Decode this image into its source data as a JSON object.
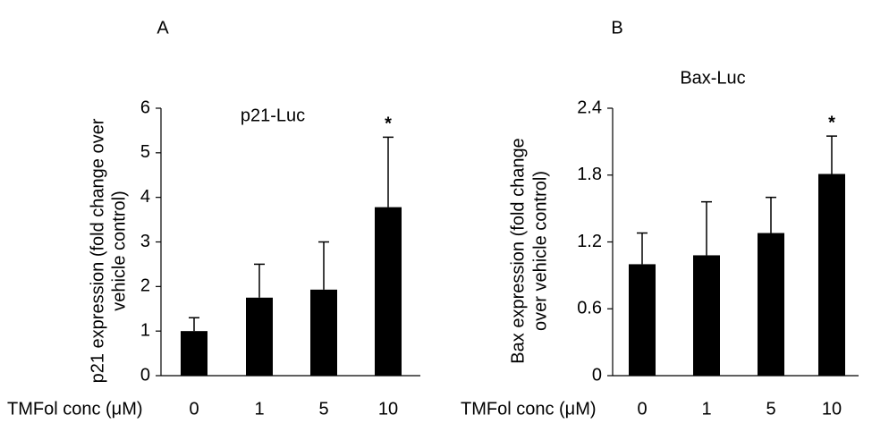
{
  "chart_data": [
    {
      "type": "bar",
      "panel_label": "A",
      "title": "p21-Luc",
      "y_label": [
        "p21 expression (fold change over",
        "vehicle control)"
      ],
      "x_label": "TMFol conc (μM)",
      "categories": [
        "0",
        "1",
        "5",
        "10"
      ],
      "values": [
        1.0,
        1.75,
        1.93,
        3.78
      ],
      "errors": [
        0.3,
        0.75,
        1.07,
        1.57
      ],
      "color": "#000000",
      "ylim": [
        0,
        6
      ],
      "yticks": [
        0,
        1,
        2,
        3,
        4,
        5,
        6
      ],
      "annotations": [
        {
          "text": "*",
          "category_index": 3
        }
      ]
    },
    {
      "type": "bar",
      "panel_label": "B",
      "title": "Bax-Luc",
      "y_label": [
        "Bax expression (fold change",
        "over vehicle control)"
      ],
      "x_label": "TMFol conc (μM)",
      "categories": [
        "0",
        "1",
        "5",
        "10"
      ],
      "values": [
        1.0,
        1.08,
        1.28,
        1.81
      ],
      "errors": [
        0.28,
        0.48,
        0.32,
        0.34
      ],
      "color": "#000000",
      "ylim": [
        0,
        2.4
      ],
      "yticks": [
        0,
        0.6,
        1.2,
        1.8,
        2.4
      ],
      "annotations": [
        {
          "text": "*",
          "category_index": 3
        }
      ]
    }
  ]
}
